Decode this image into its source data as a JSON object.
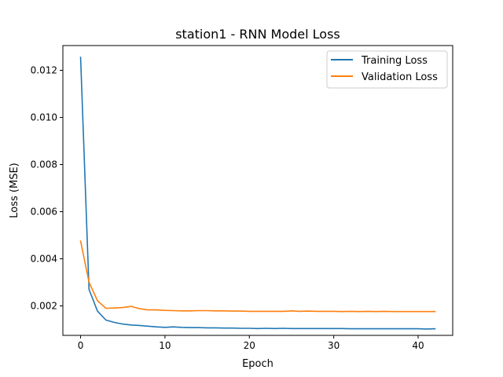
{
  "chart_data": {
    "type": "line",
    "title": "station1 - RNN Model Loss",
    "xlabel": "Epoch",
    "ylabel": "Loss (MSE)",
    "xlim": [
      -2.1,
      44.1
    ],
    "ylim": [
      0.00075,
      0.01305
    ],
    "xticks": [
      0,
      10,
      20,
      30,
      40
    ],
    "yticks": [
      0.002,
      0.004,
      0.006,
      0.008,
      0.01,
      0.012
    ],
    "ytick_labels": [
      "0.002",
      "0.004",
      "0.006",
      "0.008",
      "0.010",
      "0.012"
    ],
    "grid": false,
    "legend": "top-right",
    "x": [
      0,
      1,
      2,
      3,
      4,
      5,
      6,
      7,
      8,
      9,
      10,
      11,
      12,
      13,
      14,
      15,
      16,
      17,
      18,
      19,
      20,
      21,
      22,
      23,
      24,
      25,
      26,
      27,
      28,
      29,
      30,
      31,
      32,
      33,
      34,
      35,
      36,
      37,
      38,
      39,
      40,
      41,
      42
    ],
    "series": [
      {
        "name": "Training Loss",
        "color": "#1f77b4",
        "values": [
          0.01255,
          0.0027,
          0.00178,
          0.0014,
          0.0013,
          0.00123,
          0.00119,
          0.00117,
          0.00114,
          0.00111,
          0.00109,
          0.00111,
          0.00109,
          0.00108,
          0.00108,
          0.00107,
          0.00107,
          0.00106,
          0.00106,
          0.00105,
          0.00105,
          0.00104,
          0.00105,
          0.00104,
          0.00105,
          0.00104,
          0.00104,
          0.00104,
          0.00104,
          0.00104,
          0.00104,
          0.00104,
          0.00103,
          0.00103,
          0.00103,
          0.00103,
          0.00103,
          0.00103,
          0.00103,
          0.00103,
          0.00103,
          0.00102,
          0.00103
        ]
      },
      {
        "name": "Validation Loss",
        "color": "#ff7f0e",
        "values": [
          0.00475,
          0.003,
          0.00222,
          0.0019,
          0.00191,
          0.00193,
          0.00198,
          0.00188,
          0.00183,
          0.00183,
          0.00181,
          0.0018,
          0.00179,
          0.00179,
          0.0018,
          0.0018,
          0.00179,
          0.00179,
          0.00178,
          0.00178,
          0.00177,
          0.00177,
          0.00177,
          0.00177,
          0.00177,
          0.00179,
          0.00177,
          0.00178,
          0.00177,
          0.00177,
          0.00177,
          0.00176,
          0.00177,
          0.00176,
          0.00177,
          0.00176,
          0.00177,
          0.00176,
          0.00176,
          0.00176,
          0.00176,
          0.00176,
          0.00176
        ]
      }
    ]
  }
}
